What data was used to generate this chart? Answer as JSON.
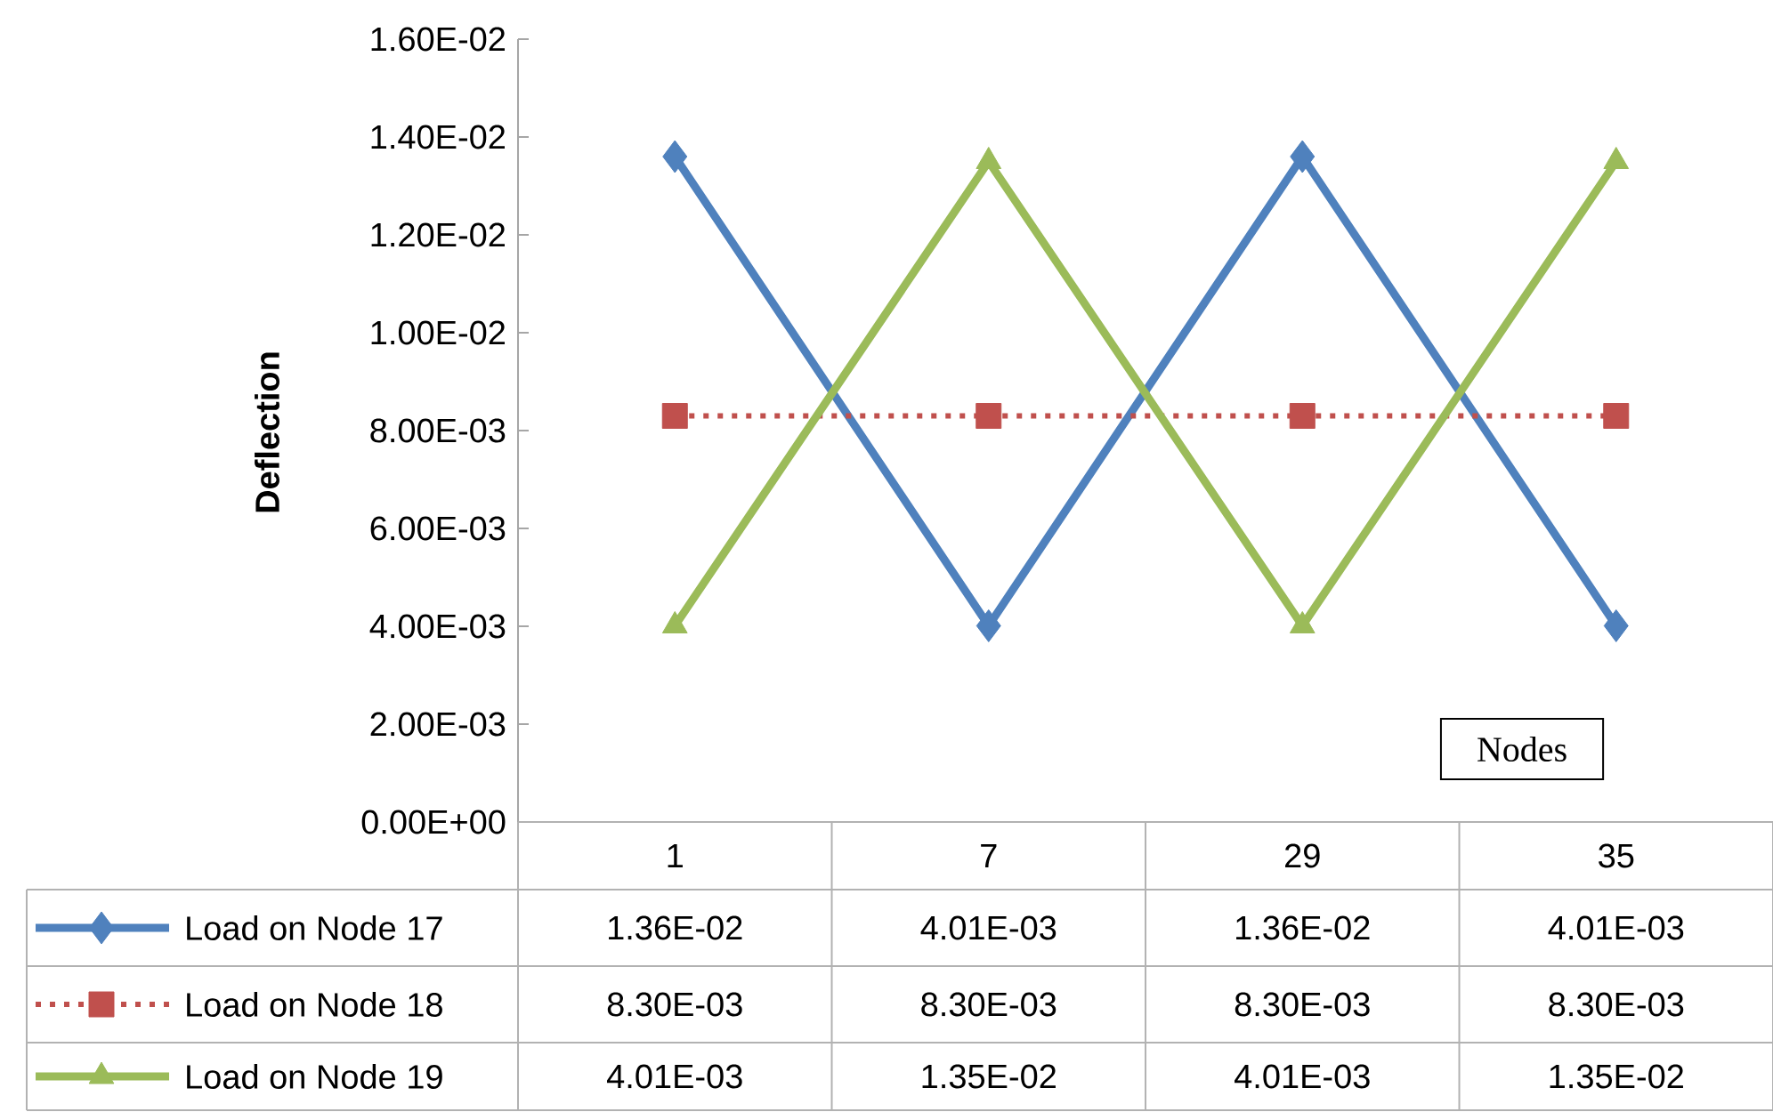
{
  "chart_data": {
    "type": "line",
    "xlabel": "Nodes",
    "ylabel": "Deflection",
    "categories": [
      "1",
      "7",
      "29",
      "35"
    ],
    "series": [
      {
        "name": "Load on Node 17",
        "color": "#4f81bd",
        "marker": "diamond",
        "line_style": "solid",
        "values": [
          0.0136,
          0.00401,
          0.0136,
          0.00401
        ],
        "value_labels": [
          "1.36E-02",
          "4.01E-03",
          "1.36E-02",
          "4.01E-03"
        ]
      },
      {
        "name": "Load on Node 18",
        "color": "#c0504d",
        "marker": "square",
        "line_style": "dotted",
        "values": [
          0.0083,
          0.0083,
          0.0083,
          0.0083
        ],
        "value_labels": [
          "8.30E-03",
          "8.30E-03",
          "8.30E-03",
          "8.30E-03"
        ]
      },
      {
        "name": "Load on Node 19",
        "color": "#9bbb59",
        "marker": "triangle",
        "line_style": "solid",
        "values": [
          0.00401,
          0.0135,
          0.00401,
          0.0135
        ],
        "value_labels": [
          "4.01E-03",
          "1.35E-02",
          "4.01E-03",
          "1.35E-02"
        ]
      }
    ],
    "ylim": [
      0,
      0.016
    ],
    "yticks": [
      {
        "value": 0,
        "label": "0.00E+00"
      },
      {
        "value": 0.002,
        "label": "2.00E-03"
      },
      {
        "value": 0.004,
        "label": "4.00E-03"
      },
      {
        "value": 0.006,
        "label": "6.00E-03"
      },
      {
        "value": 0.008,
        "label": "8.00E-03"
      },
      {
        "value": 0.01,
        "label": "1.00E-02"
      },
      {
        "value": 0.012,
        "label": "1.20E-02"
      },
      {
        "value": 0.014,
        "label": "1.40E-02"
      },
      {
        "value": 0.016,
        "label": "1.60E-02"
      }
    ],
    "legend": "bottom"
  }
}
